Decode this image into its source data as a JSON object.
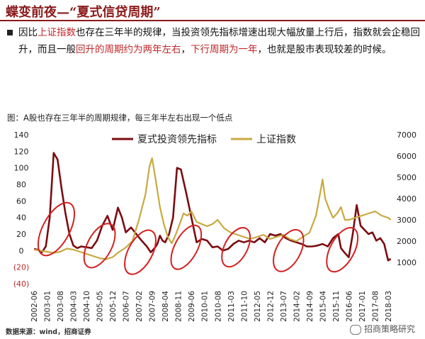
{
  "header": {
    "title": "蝶变前夜—“夏式信贷周期”"
  },
  "bullet": {
    "p1": "因比",
    "p2": "上证指数",
    "p3": "也存在三年半的规律，当投资领先指标增速出现大幅放量上行后，指数就会企稳回升，而且一般",
    "p4": "回升的周期约为两年左右",
    "p5": "，",
    "p6": "下行周期为一年",
    "p7": "，也就是股市表现较差的时候。"
  },
  "caption": "图：A股也存在三年半的周期规律，每三年半左右出现一个低点",
  "source": "数据来源：wind，招商证券",
  "watermark": "招商策略研究",
  "colors": {
    "accent": "#8b1a1a",
    "highlight": "#c0282b",
    "series1": "#7a0d12",
    "series2": "#c8a940",
    "ellipse": "#d42020"
  },
  "chart_data": {
    "type": "line",
    "legend_position": "top",
    "x_ticks": [
      "2002-06",
      "2003-01",
      "2003-08",
      "2004-03",
      "2004-10",
      "2005-05",
      "2005-12",
      "2006-07",
      "2007-02",
      "2007-09",
      "2008-04",
      "2008-11",
      "2009-06",
      "2010-01",
      "2010-08",
      "2011-03",
      "2011-10",
      "2012-05",
      "2012-12",
      "2013-07",
      "2014-02",
      "2014-09",
      "2015-04",
      "2015-11",
      "2016-06",
      "2017-01",
      "2017-08",
      "2018-03"
    ],
    "y_left": {
      "ticks": [
        "140",
        "120",
        "100",
        "80",
        "60",
        "40",
        "20",
        "0",
        "(20)",
        "(40)"
      ],
      "values": [
        140,
        120,
        100,
        80,
        60,
        40,
        20,
        0,
        -20,
        -40
      ],
      "range": [
        -40,
        140
      ]
    },
    "y_right": {
      "ticks": [
        "7000",
        "6000",
        "5000",
        "4000",
        "3000",
        "2000",
        "1000"
      ],
      "values": [
        7000,
        6000,
        5000,
        4000,
        3000,
        2000,
        1000
      ],
      "range": [
        0,
        7000
      ]
    },
    "series": [
      {
        "name": "夏式投资领先指标",
        "axis": "left",
        "color": "#7a0d12",
        "x": [
          0,
          0.3,
          0.6,
          0.9,
          1.2,
          1.5,
          1.8,
          2.1,
          2.4,
          2.7,
          3.0,
          3.3,
          3.6,
          4.0,
          4.4,
          4.8,
          5.2,
          5.6,
          6.0,
          6.4,
          6.7,
          7.0,
          7.4,
          7.8,
          8.2,
          8.6,
          8.9,
          9.2,
          9.4,
          9.6,
          9.8,
          10.0,
          10.3,
          10.6,
          10.9,
          11.2,
          11.6,
          12.0,
          12.4,
          12.8,
          13.2,
          13.6,
          14.0,
          14.4,
          14.8,
          15.2,
          15.6,
          16.0,
          16.4,
          16.8,
          17.2,
          17.6,
          18.0,
          18.4,
          18.8,
          19.2,
          19.6,
          20.0,
          20.4,
          20.8,
          21.2,
          21.6,
          22.0,
          22.4,
          22.8,
          23.2,
          23.4,
          23.7,
          24.0,
          24.3,
          24.6,
          24.9,
          25.2,
          25.5,
          25.8,
          26.1,
          26.4,
          26.7,
          27.0,
          27.2
        ],
        "y": [
          2,
          1,
          -2,
          5,
          40,
          118,
          110,
          75,
          45,
          20,
          6,
          3,
          5,
          4,
          3,
          12,
          30,
          42,
          25,
          52,
          40,
          22,
          28,
          20,
          12,
          5,
          -2,
          3,
          8,
          18,
          12,
          10,
          20,
          40,
          100,
          98,
          70,
          40,
          10,
          14,
          12,
          4,
          5,
          0,
          2,
          8,
          12,
          10,
          12,
          10,
          15,
          10,
          20,
          18,
          20,
          15,
          12,
          10,
          8,
          5,
          5,
          6,
          8,
          5,
          15,
          20,
          3,
          -3,
          -8,
          20,
          55,
          30,
          25,
          20,
          22,
          12,
          15,
          8,
          -12,
          -10
        ]
      },
      {
        "name": "上证指数",
        "axis": "right",
        "color": "#c8a940",
        "x": [
          0,
          0.5,
          1.0,
          1.5,
          2.0,
          2.5,
          3.0,
          3.5,
          4.0,
          4.5,
          5.0,
          5.5,
          6.0,
          6.5,
          7.0,
          7.5,
          8.0,
          8.5,
          8.8,
          9.0,
          9.3,
          9.6,
          9.9,
          10.2,
          10.5,
          10.8,
          11.1,
          11.4,
          11.7,
          12.0,
          12.4,
          12.8,
          13.2,
          13.6,
          14.0,
          14.5,
          15.0,
          15.5,
          16.0,
          16.5,
          17.0,
          17.5,
          18.0,
          18.5,
          19.0,
          19.5,
          20.0,
          20.5,
          21.0,
          21.5,
          21.8,
          22.0,
          22.2,
          22.5,
          22.8,
          23.1,
          23.4,
          23.7,
          24.0,
          24.5,
          25.0,
          25.5,
          26.0,
          26.5,
          27.0,
          27.2
        ],
        "y": [
          1600,
          1550,
          1500,
          1450,
          1500,
          1650,
          1600,
          1500,
          1400,
          1300,
          1200,
          1150,
          1250,
          1500,
          1700,
          2000,
          3000,
          4200,
          5500,
          5900,
          4800,
          3600,
          2800,
          2200,
          1900,
          2300,
          2800,
          3300,
          3200,
          3400,
          2900,
          2800,
          2700,
          2800,
          3000,
          2600,
          2400,
          2300,
          2200,
          2100,
          2200,
          2300,
          2100,
          2200,
          2300,
          2100,
          2000,
          2200,
          2400,
          3200,
          4200,
          4900,
          4000,
          3500,
          3100,
          3300,
          3600,
          3000,
          3000,
          3100,
          3200,
          3300,
          3400,
          3200,
          3100,
          3000
        ]
      }
    ],
    "annotations": {
      "ellipses_count": 7
    }
  }
}
